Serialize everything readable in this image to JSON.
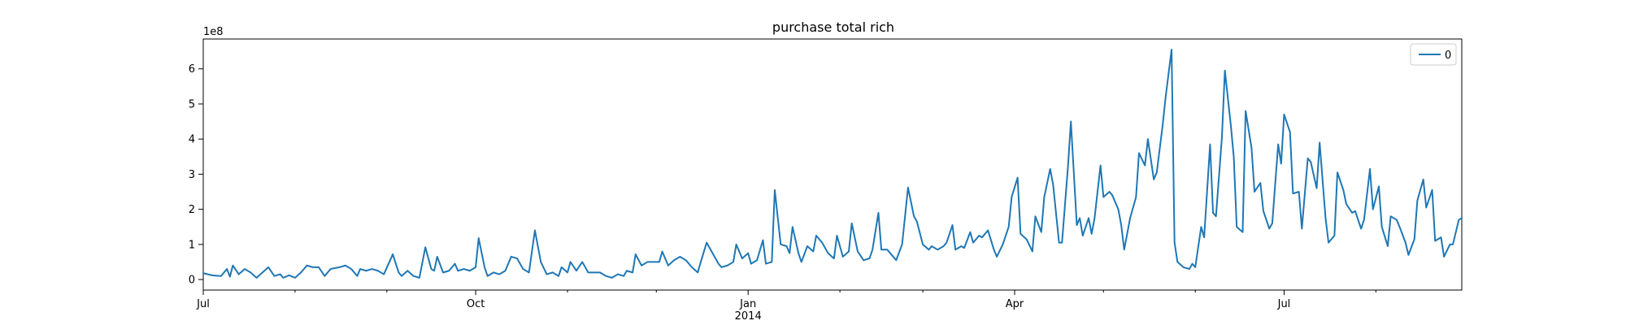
{
  "chart_data": {
    "type": "line",
    "title": "purchase total rich",
    "xlabel": "",
    "ylabel": "",
    "y_offset_label": "1e8",
    "ylim": [
      -0.3,
      6.85
    ],
    "yticks": [
      0,
      1,
      2,
      3,
      4,
      5,
      6
    ],
    "xlim_day_index": [
      0,
      425
    ],
    "x_start": "2013-07-01",
    "x_end": "2014-08-31",
    "xticks": [
      {
        "day": 0,
        "label": "Jul",
        "sublabel": ""
      },
      {
        "day": 92,
        "label": "Oct",
        "sublabel": ""
      },
      {
        "day": 184,
        "label": "Jan",
        "sublabel": "2014"
      },
      {
        "day": 274,
        "label": "Apr",
        "sublabel": ""
      },
      {
        "day": 365,
        "label": "Jul",
        "sublabel": ""
      }
    ],
    "minor_xticks_day": [
      31,
      62,
      123,
      153,
      215,
      243,
      304,
      335,
      396
    ],
    "legend": {
      "entries": [
        "0"
      ],
      "placement": "top-right"
    },
    "grid": false,
    "series": [
      {
        "name": "0",
        "color": "#1f77b4",
        "unit": "1e8",
        "points": [
          [
            0,
            0.18
          ],
          [
            3,
            0.12
          ],
          [
            6,
            0.1
          ],
          [
            8,
            0.3
          ],
          [
            9,
            0.08
          ],
          [
            10,
            0.4
          ],
          [
            12,
            0.15
          ],
          [
            14,
            0.3
          ],
          [
            16,
            0.2
          ],
          [
            18,
            0.05
          ],
          [
            20,
            0.2
          ],
          [
            22,
            0.35
          ],
          [
            24,
            0.1
          ],
          [
            26,
            0.15
          ],
          [
            27,
            0.05
          ],
          [
            29,
            0.12
          ],
          [
            31,
            0.05
          ],
          [
            33,
            0.2
          ],
          [
            35,
            0.4
          ],
          [
            37,
            0.35
          ],
          [
            39,
            0.35
          ],
          [
            41,
            0.1
          ],
          [
            43,
            0.3
          ],
          [
            46,
            0.35
          ],
          [
            48,
            0.4
          ],
          [
            50,
            0.3
          ],
          [
            52,
            0.1
          ],
          [
            53,
            0.3
          ],
          [
            55,
            0.25
          ],
          [
            57,
            0.3
          ],
          [
            59,
            0.25
          ],
          [
            61,
            0.15
          ],
          [
            64,
            0.72
          ],
          [
            66,
            0.2
          ],
          [
            67,
            0.1
          ],
          [
            69,
            0.25
          ],
          [
            71,
            0.1
          ],
          [
            73,
            0.05
          ],
          [
            75,
            0.92
          ],
          [
            77,
            0.3
          ],
          [
            78,
            0.25
          ],
          [
            79,
            0.65
          ],
          [
            81,
            0.2
          ],
          [
            83,
            0.25
          ],
          [
            85,
            0.45
          ],
          [
            86,
            0.25
          ],
          [
            88,
            0.3
          ],
          [
            90,
            0.25
          ],
          [
            92,
            0.35
          ],
          [
            93,
            1.18
          ],
          [
            95,
            0.35
          ],
          [
            96,
            0.1
          ],
          [
            98,
            0.2
          ],
          [
            100,
            0.15
          ],
          [
            102,
            0.25
          ],
          [
            104,
            0.65
          ],
          [
            106,
            0.6
          ],
          [
            108,
            0.3
          ],
          [
            110,
            0.2
          ],
          [
            112,
            1.4
          ],
          [
            114,
            0.5
          ],
          [
            116,
            0.15
          ],
          [
            118,
            0.2
          ],
          [
            120,
            0.1
          ],
          [
            121,
            0.35
          ],
          [
            123,
            0.2
          ],
          [
            124,
            0.5
          ],
          [
            126,
            0.25
          ],
          [
            128,
            0.5
          ],
          [
            130,
            0.2
          ],
          [
            132,
            0.2
          ],
          [
            134,
            0.2
          ],
          [
            136,
            0.1
          ],
          [
            138,
            0.05
          ],
          [
            140,
            0.15
          ],
          [
            142,
            0.1
          ],
          [
            143,
            0.25
          ],
          [
            145,
            0.2
          ],
          [
            146,
            0.72
          ],
          [
            148,
            0.4
          ],
          [
            150,
            0.5
          ],
          [
            152,
            0.5
          ],
          [
            154,
            0.5
          ],
          [
            155,
            0.8
          ],
          [
            157,
            0.4
          ],
          [
            159,
            0.55
          ],
          [
            161,
            0.65
          ],
          [
            163,
            0.55
          ],
          [
            165,
            0.35
          ],
          [
            167,
            0.2
          ],
          [
            168,
            0.5
          ],
          [
            170,
            1.05
          ],
          [
            172,
            0.75
          ],
          [
            174,
            0.45
          ],
          [
            175,
            0.35
          ],
          [
            177,
            0.4
          ],
          [
            179,
            0.5
          ],
          [
            180,
            1.0
          ],
          [
            182,
            0.6
          ],
          [
            184,
            0.75
          ],
          [
            185,
            0.45
          ],
          [
            187,
            0.55
          ],
          [
            189,
            1.12
          ],
          [
            190,
            0.45
          ],
          [
            192,
            0.5
          ],
          [
            193,
            2.55
          ],
          [
            195,
            1.0
          ],
          [
            197,
            0.95
          ],
          [
            198,
            0.75
          ],
          [
            199,
            1.5
          ],
          [
            201,
            0.75
          ],
          [
            202,
            0.5
          ],
          [
            204,
            0.95
          ],
          [
            206,
            0.8
          ],
          [
            207,
            1.25
          ],
          [
            209,
            1.05
          ],
          [
            211,
            0.75
          ],
          [
            213,
            0.6
          ],
          [
            214,
            1.25
          ],
          [
            216,
            0.65
          ],
          [
            218,
            0.8
          ],
          [
            219,
            1.6
          ],
          [
            221,
            0.8
          ],
          [
            223,
            0.55
          ],
          [
            225,
            0.6
          ],
          [
            226,
            0.85
          ],
          [
            228,
            1.9
          ],
          [
            229,
            0.85
          ],
          [
            231,
            0.85
          ],
          [
            233,
            0.65
          ],
          [
            234,
            0.55
          ],
          [
            236,
            1.0
          ],
          [
            238,
            2.62
          ],
          [
            240,
            1.8
          ],
          [
            241,
            1.65
          ],
          [
            243,
            1.0
          ],
          [
            245,
            0.85
          ],
          [
            246,
            0.95
          ],
          [
            248,
            0.85
          ],
          [
            250,
            0.95
          ],
          [
            251,
            1.05
          ],
          [
            253,
            1.55
          ],
          [
            254,
            0.85
          ],
          [
            256,
            0.95
          ],
          [
            257,
            0.9
          ],
          [
            259,
            1.35
          ],
          [
            260,
            1.05
          ],
          [
            262,
            1.25
          ],
          [
            263,
            1.2
          ],
          [
            265,
            1.4
          ],
          [
            267,
            0.85
          ],
          [
            268,
            0.65
          ],
          [
            270,
            1.0
          ],
          [
            272,
            1.5
          ],
          [
            273,
            2.35
          ],
          [
            275,
            2.9
          ],
          [
            276,
            1.3
          ],
          [
            278,
            1.15
          ],
          [
            280,
            0.8
          ],
          [
            281,
            1.8
          ],
          [
            283,
            1.35
          ],
          [
            284,
            2.35
          ],
          [
            286,
            3.15
          ],
          [
            287,
            2.7
          ],
          [
            289,
            1.05
          ],
          [
            290,
            1.05
          ],
          [
            292,
            3.2
          ],
          [
            293,
            4.5
          ],
          [
            295,
            1.55
          ],
          [
            296,
            1.75
          ],
          [
            297,
            1.25
          ],
          [
            299,
            1.75
          ],
          [
            300,
            1.3
          ],
          [
            301,
            1.75
          ],
          [
            303,
            3.25
          ],
          [
            304,
            2.35
          ],
          [
            306,
            2.5
          ],
          [
            307,
            2.4
          ],
          [
            309,
            2.0
          ],
          [
            310,
            1.55
          ],
          [
            311,
            0.85
          ],
          [
            313,
            1.75
          ],
          [
            315,
            2.35
          ],
          [
            316,
            3.6
          ],
          [
            318,
            3.25
          ],
          [
            319,
            4.0
          ],
          [
            321,
            2.85
          ],
          [
            322,
            3.05
          ],
          [
            324,
            4.4
          ],
          [
            325,
            5.2
          ],
          [
            327,
            6.55
          ],
          [
            328,
            1.05
          ],
          [
            329,
            0.5
          ],
          [
            331,
            0.35
          ],
          [
            333,
            0.3
          ],
          [
            334,
            0.45
          ],
          [
            335,
            0.35
          ],
          [
            337,
            1.5
          ],
          [
            338,
            1.2
          ],
          [
            340,
            3.85
          ],
          [
            341,
            1.9
          ],
          [
            342,
            1.8
          ],
          [
            344,
            4.05
          ],
          [
            345,
            5.95
          ],
          [
            347,
            4.4
          ],
          [
            348,
            3.5
          ],
          [
            349,
            1.5
          ],
          [
            351,
            1.35
          ],
          [
            352,
            4.8
          ],
          [
            354,
            3.75
          ],
          [
            355,
            2.5
          ],
          [
            357,
            2.75
          ],
          [
            358,
            1.95
          ],
          [
            360,
            1.45
          ],
          [
            361,
            1.6
          ],
          [
            363,
            3.85
          ],
          [
            364,
            3.3
          ],
          [
            365,
            4.7
          ],
          [
            367,
            4.2
          ],
          [
            368,
            2.45
          ],
          [
            370,
            2.5
          ],
          [
            371,
            1.45
          ],
          [
            373,
            3.45
          ],
          [
            374,
            3.35
          ],
          [
            376,
            2.6
          ],
          [
            377,
            3.9
          ],
          [
            379,
            1.75
          ],
          [
            380,
            1.05
          ],
          [
            382,
            1.25
          ],
          [
            383,
            3.05
          ],
          [
            385,
            2.55
          ],
          [
            386,
            2.15
          ],
          [
            388,
            1.9
          ],
          [
            389,
            1.95
          ],
          [
            391,
            1.45
          ],
          [
            392,
            1.7
          ],
          [
            394,
            3.15
          ],
          [
            395,
            2.0
          ],
          [
            397,
            2.65
          ],
          [
            398,
            1.5
          ],
          [
            400,
            0.95
          ],
          [
            401,
            1.8
          ],
          [
            403,
            1.7
          ],
          [
            404,
            1.5
          ],
          [
            406,
            1.05
          ],
          [
            407,
            0.7
          ],
          [
            409,
            1.15
          ],
          [
            410,
            2.25
          ],
          [
            412,
            2.85
          ],
          [
            413,
            2.05
          ],
          [
            415,
            2.55
          ],
          [
            416,
            1.1
          ],
          [
            418,
            1.2
          ],
          [
            419,
            0.65
          ],
          [
            421,
            1.0
          ],
          [
            422,
            1.0
          ],
          [
            424,
            1.7
          ],
          [
            425,
            1.75
          ]
        ]
      }
    ]
  }
}
